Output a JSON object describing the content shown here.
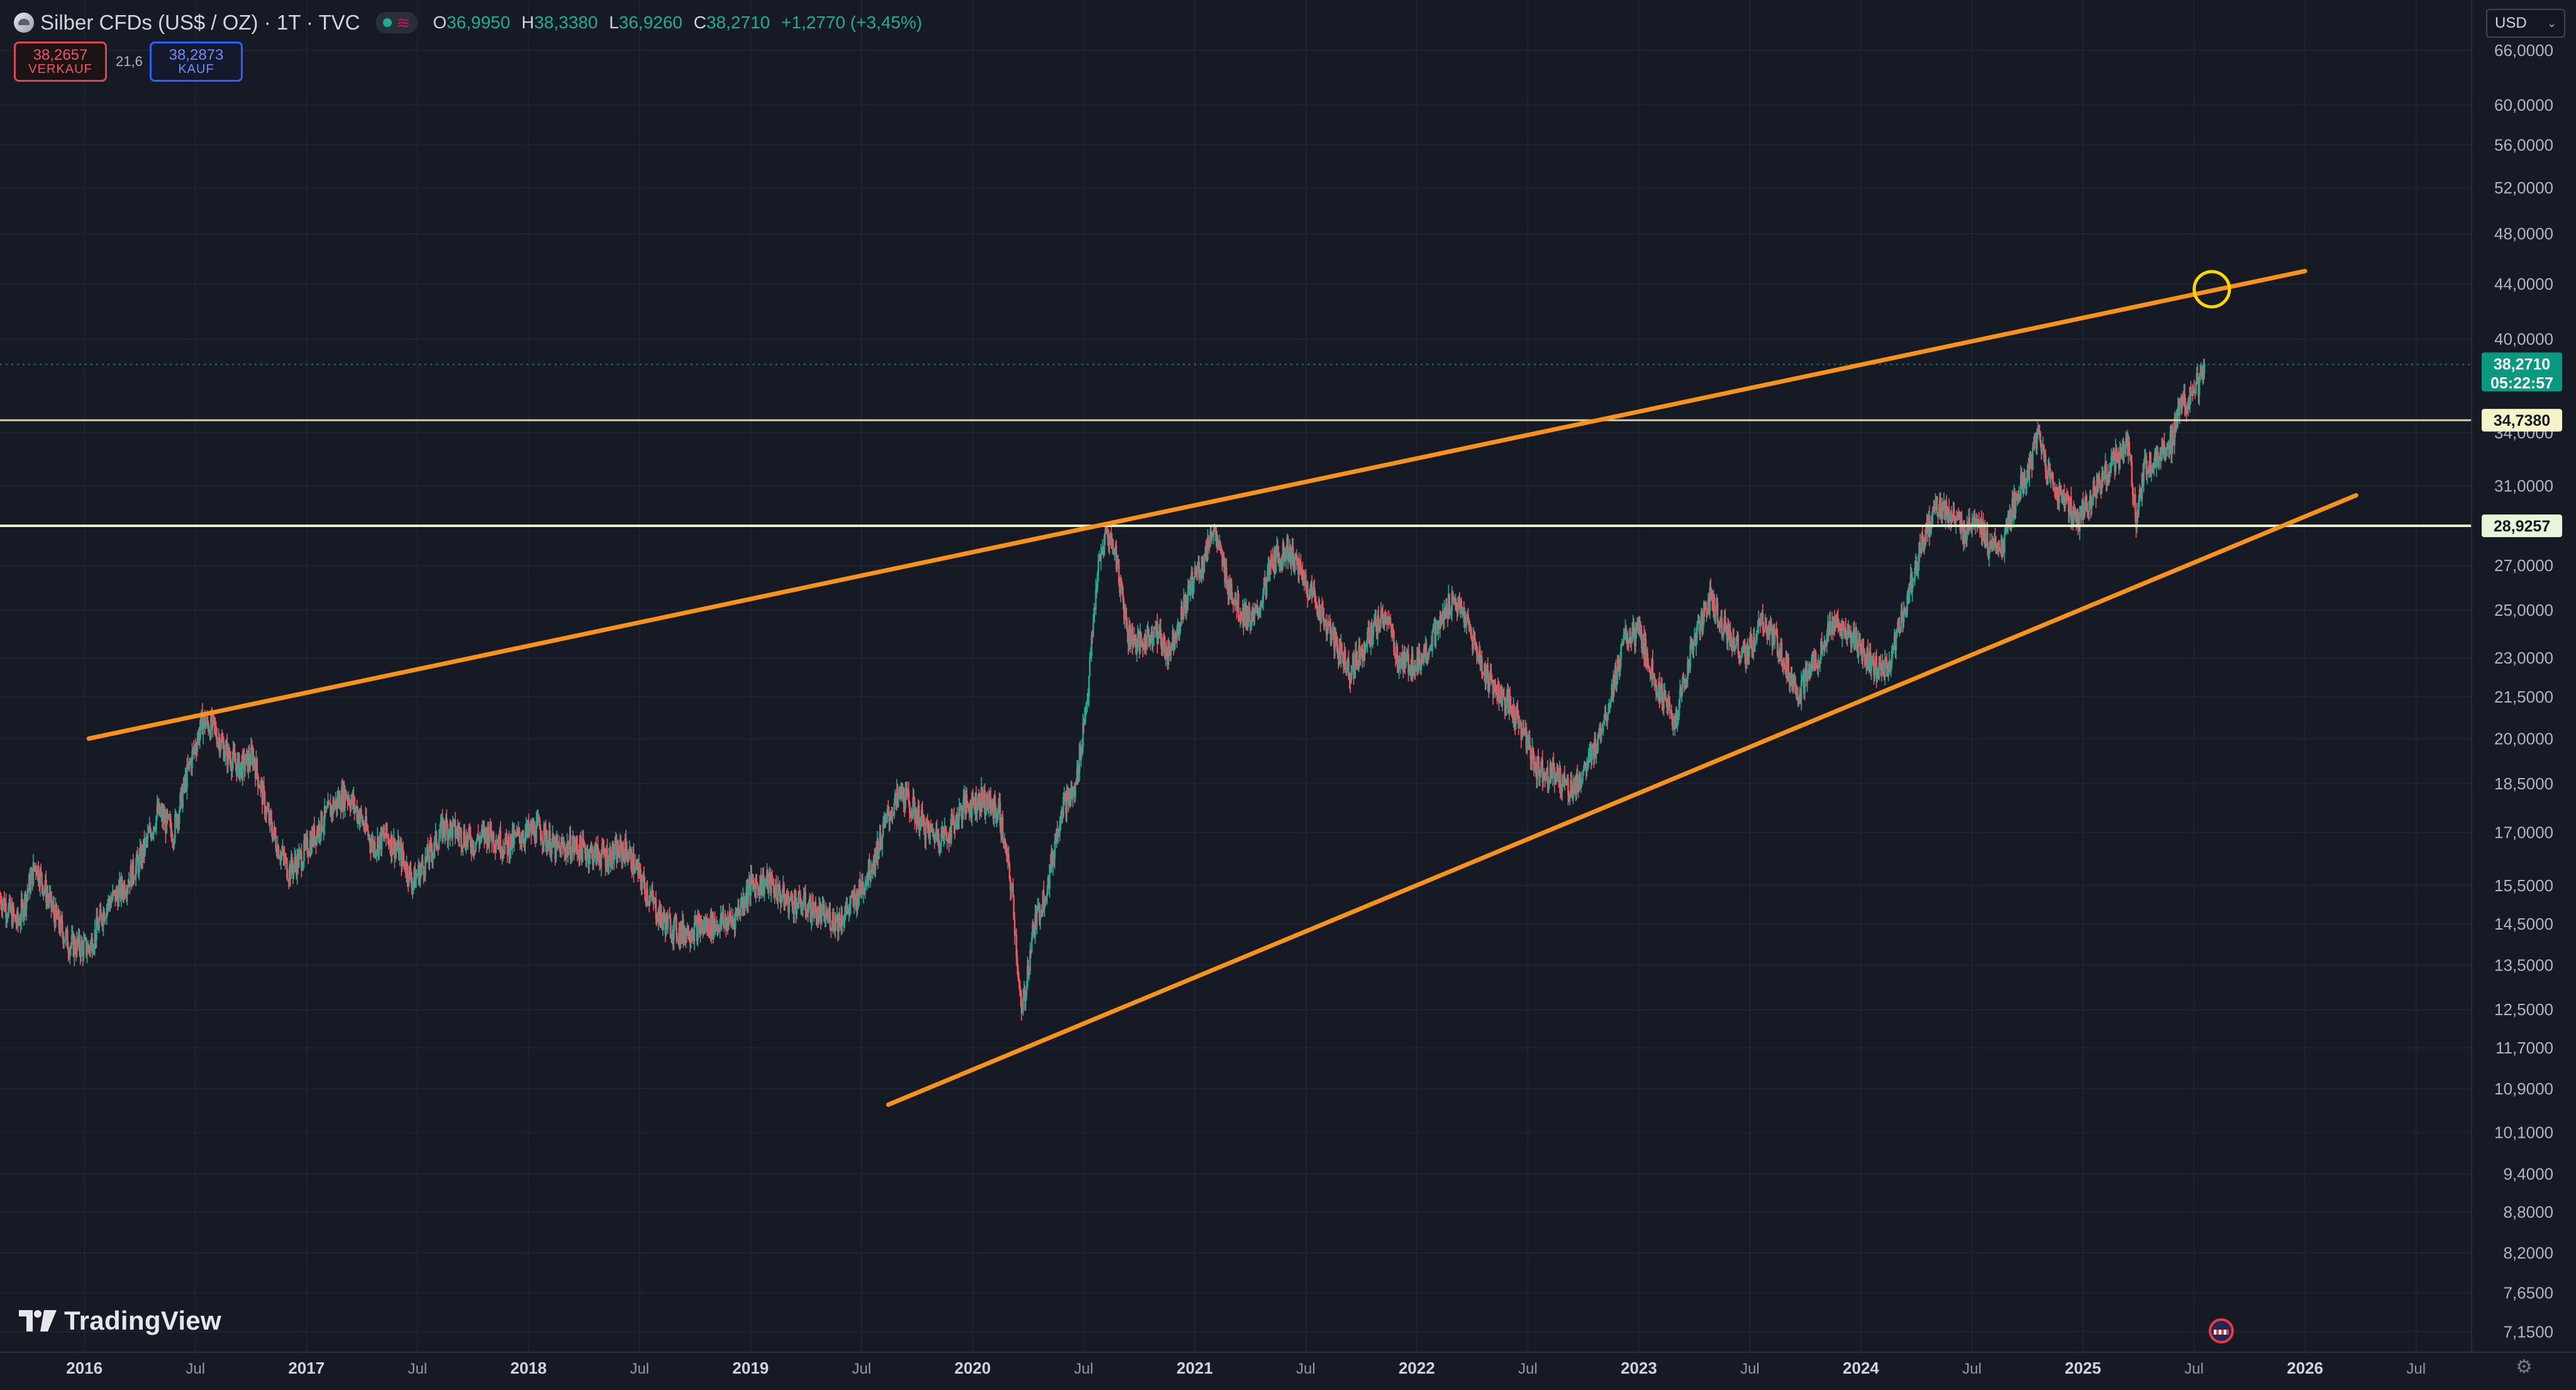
{
  "header": {
    "symbol_title": "Silber CFDs (US$ / OZ) · 1T · TVC",
    "open_label": "O",
    "open_value": "36,9950",
    "high_label": "H",
    "high_value": "38,3380",
    "low_label": "L",
    "low_value": "36,9260",
    "close_label": "C",
    "close_value": "38,2710",
    "change": "+1,2770 (+3,45%)"
  },
  "trade": {
    "sell_price": "38,2657",
    "sell_label": "VERKAUF",
    "spread": "21,6",
    "buy_price": "38,2873",
    "buy_label": "KAUF"
  },
  "currency": "USD",
  "watermark": "TradingView",
  "colors": {
    "background": "#161a25",
    "trendline": "#f7931a",
    "candle_up": "#22ab94",
    "candle_down": "#f7525f",
    "hline_upper": "#d7d3a6",
    "hline_lower": "#e3f2c8",
    "price_tag": "#089981",
    "target_circle": "#ffd600"
  },
  "chart_data": {
    "type": "candlestick",
    "scale": "log",
    "x_range": [
      2015.62,
      2026.75
    ],
    "y_range": [
      6.9,
      72
    ],
    "y_ticks": [
      "66,0000",
      "60,0000",
      "56,0000",
      "52,0000",
      "48,0000",
      "44,0000",
      "40,0000",
      "34,0000",
      "31,0000",
      "27,0000",
      "25,0000",
      "23,0000",
      "21,5000",
      "20,0000",
      "18,5000",
      "17,0000",
      "15,5000",
      "14,5000",
      "13,5000",
      "12,5000",
      "11,7000",
      "10,9000",
      "10,1000",
      "9,4000",
      "8,8000",
      "8,2000",
      "7,6500",
      "7,1500"
    ],
    "x_ticks": [
      {
        "label": "2016",
        "t": 2016.0,
        "bold": true
      },
      {
        "label": "Jul",
        "t": 2016.5
      },
      {
        "label": "2017",
        "t": 2017.0,
        "bold": true
      },
      {
        "label": "Jul",
        "t": 2017.5
      },
      {
        "label": "2018",
        "t": 2018.0,
        "bold": true
      },
      {
        "label": "Jul",
        "t": 2018.5
      },
      {
        "label": "2019",
        "t": 2019.0,
        "bold": true
      },
      {
        "label": "Jul",
        "t": 2019.5
      },
      {
        "label": "2020",
        "t": 2020.0,
        "bold": true
      },
      {
        "label": "Jul",
        "t": 2020.5
      },
      {
        "label": "2021",
        "t": 2021.0,
        "bold": true
      },
      {
        "label": "Jul",
        "t": 2021.5
      },
      {
        "label": "2022",
        "t": 2022.0,
        "bold": true
      },
      {
        "label": "Jul",
        "t": 2022.5
      },
      {
        "label": "2023",
        "t": 2023.0,
        "bold": true
      },
      {
        "label": "Jul",
        "t": 2023.5
      },
      {
        "label": "2024",
        "t": 2024.0,
        "bold": true
      },
      {
        "label": "Jul",
        "t": 2024.5
      },
      {
        "label": "2025",
        "t": 2025.0,
        "bold": true
      },
      {
        "label": "Jul",
        "t": 2025.5
      },
      {
        "label": "2026",
        "t": 2026.0,
        "bold": true
      },
      {
        "label": "Jul",
        "t": 2026.5
      }
    ],
    "price_path": [
      [
        2015.62,
        15.2
      ],
      [
        2015.7,
        14.5
      ],
      [
        2015.78,
        16.1
      ],
      [
        2015.86,
        14.8
      ],
      [
        2015.93,
        14.0
      ],
      [
        2016.02,
        13.9
      ],
      [
        2016.1,
        15.0
      ],
      [
        2016.17,
        15.4
      ],
      [
        2016.25,
        16.2
      ],
      [
        2016.33,
        17.6
      ],
      [
        2016.4,
        17.0
      ],
      [
        2016.47,
        19.0
      ],
      [
        2016.53,
        20.6
      ],
      [
        2016.58,
        20.4
      ],
      [
        2016.64,
        19.5
      ],
      [
        2016.7,
        19.0
      ],
      [
        2016.76,
        19.4
      ],
      [
        2016.82,
        17.6
      ],
      [
        2016.87,
        16.6
      ],
      [
        2016.92,
        15.9
      ],
      [
        2016.98,
        16.3
      ],
      [
        2017.05,
        17.1
      ],
      [
        2017.12,
        17.8
      ],
      [
        2017.18,
        18.2
      ],
      [
        2017.24,
        17.5
      ],
      [
        2017.3,
        16.6
      ],
      [
        2017.36,
        16.9
      ],
      [
        2017.42,
        16.4
      ],
      [
        2017.48,
        15.6
      ],
      [
        2017.55,
        16.3
      ],
      [
        2017.62,
        17.2
      ],
      [
        2017.68,
        17.0
      ],
      [
        2017.75,
        16.7
      ],
      [
        2017.82,
        17.0
      ],
      [
        2017.9,
        16.6
      ],
      [
        2017.96,
        16.9
      ],
      [
        2018.05,
        17.1
      ],
      [
        2018.12,
        16.5
      ],
      [
        2018.2,
        16.6
      ],
      [
        2018.28,
        16.4
      ],
      [
        2018.36,
        16.3
      ],
      [
        2018.44,
        16.5
      ],
      [
        2018.52,
        15.5
      ],
      [
        2018.6,
        14.6
      ],
      [
        2018.68,
        14.3
      ],
      [
        2018.76,
        14.4
      ],
      [
        2018.84,
        14.5
      ],
      [
        2018.92,
        14.6
      ],
      [
        2019.0,
        15.5
      ],
      [
        2019.08,
        15.6
      ],
      [
        2019.16,
        15.1
      ],
      [
        2019.24,
        15.0
      ],
      [
        2019.32,
        14.7
      ],
      [
        2019.4,
        14.6
      ],
      [
        2019.48,
        15.2
      ],
      [
        2019.56,
        16.3
      ],
      [
        2019.62,
        17.5
      ],
      [
        2019.68,
        18.2
      ],
      [
        2019.74,
        17.6
      ],
      [
        2019.8,
        17.0
      ],
      [
        2019.88,
        16.9
      ],
      [
        2019.96,
        17.8
      ],
      [
        2020.04,
        18.0
      ],
      [
        2020.12,
        17.6
      ],
      [
        2020.18,
        15.2
      ],
      [
        2020.22,
        12.3
      ],
      [
        2020.27,
        14.3
      ],
      [
        2020.34,
        15.6
      ],
      [
        2020.4,
        17.8
      ],
      [
        2020.46,
        18.2
      ],
      [
        2020.52,
        21.8
      ],
      [
        2020.56,
        26.5
      ],
      [
        2020.6,
        28.6
      ],
      [
        2020.64,
        27.8
      ],
      [
        2020.7,
        24.0
      ],
      [
        2020.76,
        23.5
      ],
      [
        2020.82,
        24.2
      ],
      [
        2020.88,
        23.2
      ],
      [
        2020.94,
        24.8
      ],
      [
        2021.0,
        26.6
      ],
      [
        2021.04,
        27.2
      ],
      [
        2021.08,
        28.9
      ],
      [
        2021.14,
        26.5
      ],
      [
        2021.2,
        25.0
      ],
      [
        2021.27,
        24.5
      ],
      [
        2021.35,
        27.2
      ],
      [
        2021.42,
        27.8
      ],
      [
        2021.48,
        26.6
      ],
      [
        2021.55,
        25.3
      ],
      [
        2021.62,
        23.8
      ],
      [
        2021.7,
        22.5
      ],
      [
        2021.78,
        23.8
      ],
      [
        2021.86,
        24.8
      ],
      [
        2021.92,
        22.8
      ],
      [
        2022.0,
        22.8
      ],
      [
        2022.08,
        23.9
      ],
      [
        2022.16,
        25.5
      ],
      [
        2022.22,
        24.6
      ],
      [
        2022.3,
        22.5
      ],
      [
        2022.38,
        21.5
      ],
      [
        2022.46,
        20.6
      ],
      [
        2022.54,
        19.0
      ],
      [
        2022.62,
        18.8
      ],
      [
        2022.7,
        18.3
      ],
      [
        2022.78,
        19.2
      ],
      [
        2022.86,
        21.2
      ],
      [
        2022.94,
        23.8
      ],
      [
        2023.0,
        24.0
      ],
      [
        2023.08,
        22.0
      ],
      [
        2023.16,
        20.5
      ],
      [
        2023.24,
        23.5
      ],
      [
        2023.32,
        25.5
      ],
      [
        2023.4,
        24.0
      ],
      [
        2023.48,
        23.0
      ],
      [
        2023.56,
        24.5
      ],
      [
        2023.64,
        23.2
      ],
      [
        2023.72,
        21.6
      ],
      [
        2023.8,
        23.0
      ],
      [
        2023.88,
        24.4
      ],
      [
        2023.96,
        23.8
      ],
      [
        2024.04,
        22.8
      ],
      [
        2024.12,
        22.5
      ],
      [
        2024.18,
        24.5
      ],
      [
        2024.26,
        27.5
      ],
      [
        2024.34,
        30.0
      ],
      [
        2024.4,
        29.5
      ],
      [
        2024.46,
        28.5
      ],
      [
        2024.52,
        29.6
      ],
      [
        2024.58,
        27.6
      ],
      [
        2024.64,
        28.0
      ],
      [
        2024.7,
        30.5
      ],
      [
        2024.76,
        32.0
      ],
      [
        2024.8,
        33.8
      ],
      [
        2024.86,
        31.0
      ],
      [
        2024.92,
        30.2
      ],
      [
        2024.98,
        29.3
      ],
      [
        2025.04,
        30.5
      ],
      [
        2025.1,
        31.8
      ],
      [
        2025.16,
        32.6
      ],
      [
        2025.2,
        33.5
      ],
      [
        2025.24,
        29.2
      ],
      [
        2025.28,
        32.0
      ],
      [
        2025.34,
        32.6
      ],
      [
        2025.4,
        33.6
      ],
      [
        2025.44,
        35.5
      ],
      [
        2025.48,
        36.2
      ],
      [
        2025.52,
        37.0
      ],
      [
        2025.55,
        38.27
      ]
    ],
    "trendlines": [
      {
        "name": "upper-trendline",
        "from": [
          2016.02,
          20.0
        ],
        "to": [
          2026.0,
          45.0
        ]
      },
      {
        "name": "lower-trendline",
        "from": [
          2019.62,
          10.6
        ],
        "to": [
          2026.23,
          30.5
        ]
      }
    ],
    "horizontal_levels": [
      {
        "name": "level-upper",
        "value": 34.738,
        "label": "34,7380"
      },
      {
        "name": "level-lower",
        "value": 28.9257,
        "label": "28,9257"
      }
    ],
    "last_price": {
      "value": 38.271,
      "label": "38,2710",
      "countdown": "05:22:57"
    },
    "target_marker": {
      "t": 2025.58,
      "price": 43.6
    }
  }
}
